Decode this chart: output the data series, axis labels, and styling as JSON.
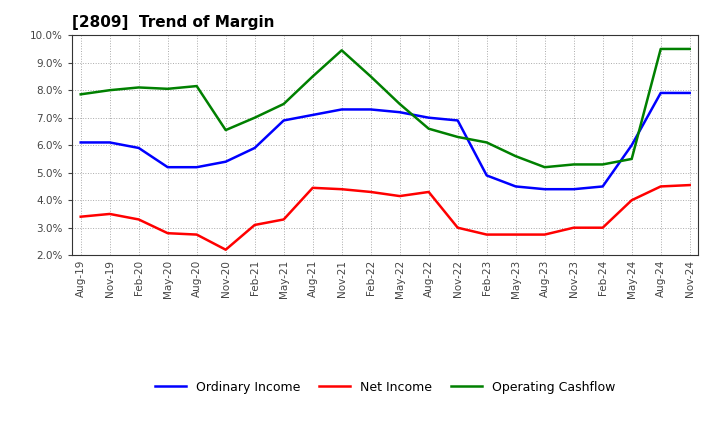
{
  "title": "[2809]  Trend of Margin",
  "x_labels": [
    "Aug-19",
    "Nov-19",
    "Feb-20",
    "May-20",
    "Aug-20",
    "Nov-20",
    "Feb-21",
    "May-21",
    "Aug-21",
    "Nov-21",
    "Feb-22",
    "May-22",
    "Aug-22",
    "Nov-22",
    "Feb-23",
    "May-23",
    "Aug-23",
    "Nov-23",
    "Feb-24",
    "May-24",
    "Aug-24",
    "Nov-24"
  ],
  "ordinary_income": [
    6.1,
    6.1,
    5.9,
    5.2,
    5.2,
    5.4,
    5.9,
    6.9,
    7.1,
    7.3,
    7.3,
    7.2,
    7.0,
    6.9,
    4.9,
    4.5,
    4.4,
    4.4,
    4.5,
    6.0,
    7.9,
    7.9
  ],
  "net_income": [
    3.4,
    3.5,
    3.3,
    2.8,
    2.75,
    2.2,
    3.1,
    3.3,
    4.45,
    4.4,
    4.3,
    4.15,
    4.3,
    3.0,
    2.75,
    2.75,
    2.75,
    3.0,
    3.0,
    4.0,
    4.5,
    4.55
  ],
  "operating_cashflow": [
    7.85,
    8.0,
    8.1,
    8.05,
    8.15,
    6.55,
    7.0,
    7.5,
    8.5,
    9.45,
    8.5,
    7.5,
    6.6,
    6.3,
    6.1,
    5.6,
    5.2,
    5.3,
    5.3,
    5.5,
    9.5,
    9.5
  ],
  "ordinary_income_color": "#0000FF",
  "net_income_color": "#FF0000",
  "operating_cashflow_color": "#008000",
  "ylim_min": 2.0,
  "ylim_max": 10.0,
  "background_color": "#FFFFFF",
  "grid_color": "#AAAAAA",
  "title_fontsize": 11,
  "legend_labels": [
    "Ordinary Income",
    "Net Income",
    "Operating Cashflow"
  ]
}
